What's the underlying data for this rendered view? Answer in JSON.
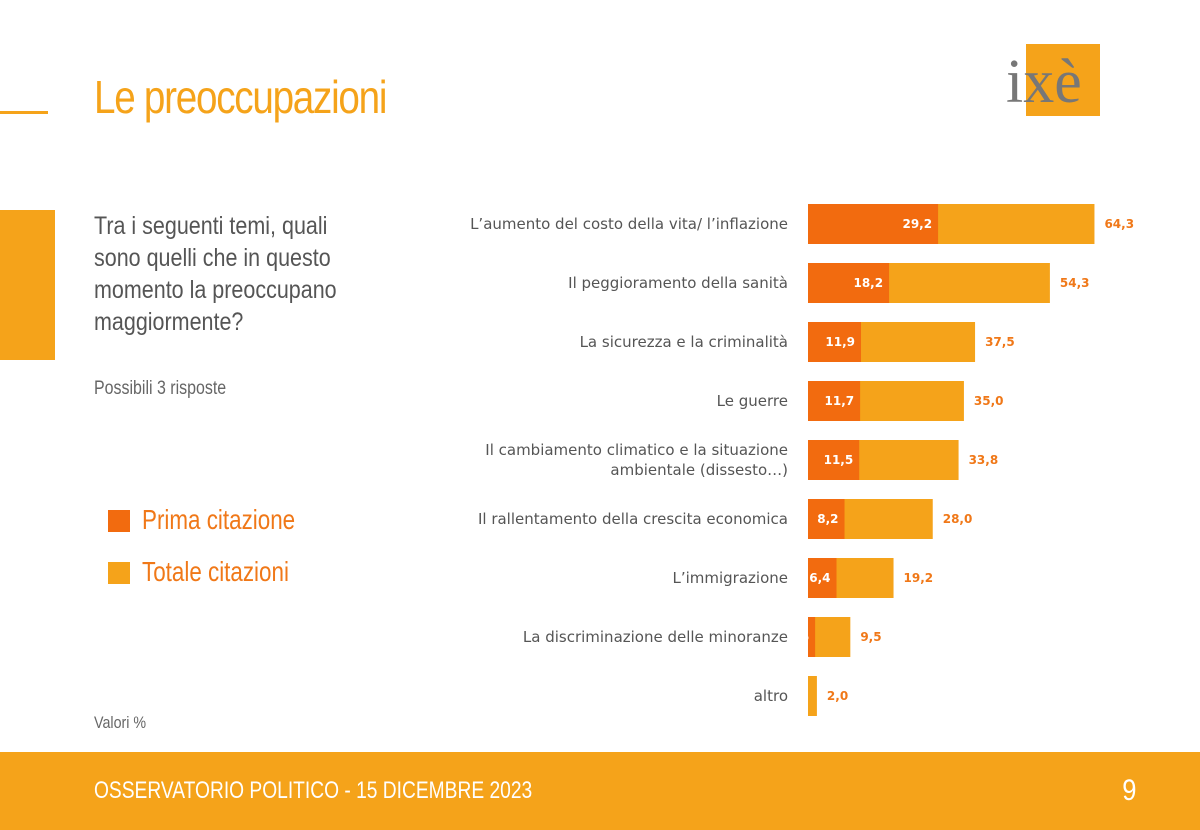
{
  "header": {
    "title": "Le preoccupazioni",
    "logo_text": "ixè"
  },
  "question": {
    "text": "Tra i seguenti temi, quali sono quelli che in questo momento la preoccupano maggiormente?",
    "note": "Possibili 3 risposte"
  },
  "legend": [
    {
      "label": "Prima citazione",
      "color": "#f26b0f"
    },
    {
      "label": "Totale citazioni",
      "color": "#f5a31a"
    }
  ],
  "values_note": "Valori %",
  "footer": {
    "text": "OSSERVATORIO POLITICO - 15 DICEMBRE 2023",
    "page": "9"
  },
  "colors": {
    "accent": "#f5a31a",
    "prima": "#f26b0f",
    "totale": "#f5a31a",
    "label": "#f07818"
  },
  "chart_data": {
    "type": "bar",
    "orientation": "horizontal",
    "categories": [
      [
        "L’aumento del costo della vita/ l’inflazione"
      ],
      [
        "Il peggioramento della sanità"
      ],
      [
        "La sicurezza e la criminalità"
      ],
      [
        "Le guerre"
      ],
      [
        "Il cambiamento climatico e la situazione",
        "ambientale (dissesto…)"
      ],
      [
        "Il rallentamento della crescita economica"
      ],
      [
        "L’immigrazione"
      ],
      [
        "La discriminazione delle minoranze"
      ],
      [
        "altro"
      ]
    ],
    "series": [
      {
        "name": "Prima citazione",
        "values": [
          29.2,
          18.2,
          11.9,
          11.7,
          11.5,
          8.2,
          6.4,
          1.6,
          null
        ],
        "labels": [
          "29,2",
          "18,2",
          "11,9",
          "11,7",
          "11,5",
          "8,2",
          "6,4",
          "1,6",
          ""
        ]
      },
      {
        "name": "Totale citazioni",
        "values": [
          64.3,
          54.3,
          37.5,
          35.0,
          33.8,
          28.0,
          19.2,
          9.5,
          2.0
        ],
        "labels": [
          "64,3",
          "54,3",
          "37,5",
          "35,0",
          "33,8",
          "28,0",
          "19,2",
          "9,5",
          "2,0"
        ]
      }
    ],
    "xlim": [
      0,
      70
    ],
    "unit": "%",
    "grid": false
  }
}
